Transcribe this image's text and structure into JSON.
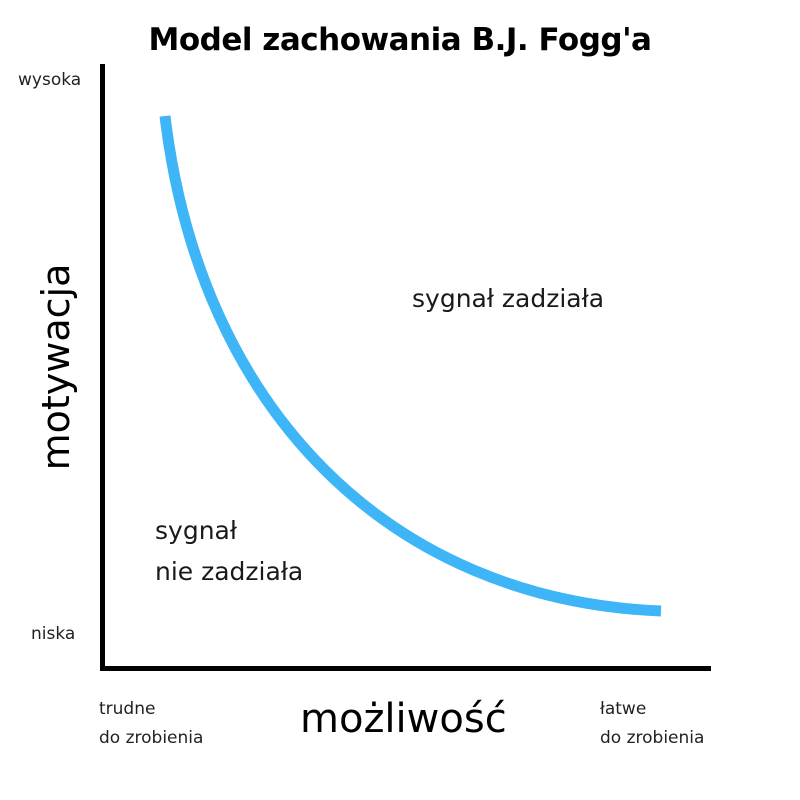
{
  "title": "Model zachowania B.J. Fogg'a",
  "y_axis": {
    "label": "motywacja",
    "high": "wysoka",
    "low": "niska"
  },
  "x_axis": {
    "label": "możliwość",
    "low_line1": "trudne",
    "low_line2": "do zrobienia",
    "high_line1": "łatwe",
    "high_line2": "do zrobienia"
  },
  "regions": {
    "above_curve": "sygnał zadziała",
    "below_curve_line1": "sygnał",
    "below_curve_line2": "nie zadziała"
  },
  "curve": {
    "color": "#3db5f7",
    "name": "action-line"
  }
}
